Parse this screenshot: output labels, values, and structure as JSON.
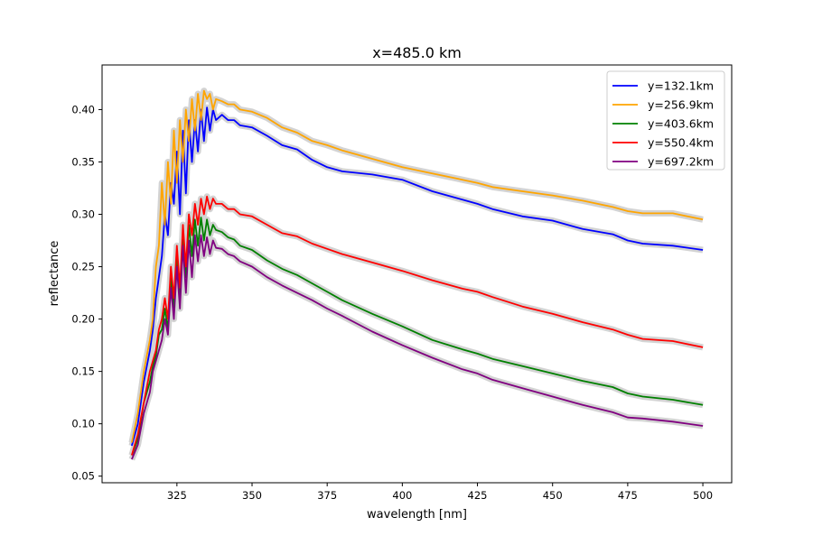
{
  "chart_data": {
    "type": "line",
    "title": "x=485.0 km",
    "xlabel": "wavelength [nm]",
    "ylabel": "reflectance",
    "xlim": [
      300.1,
      509.6
    ],
    "ylim": [
      0.0437,
      0.4426
    ],
    "xticks": [
      325,
      350,
      375,
      400,
      425,
      450,
      475,
      500
    ],
    "xtick_labels": [
      "325",
      "350",
      "375",
      "400",
      "425",
      "450",
      "475",
      "500"
    ],
    "yticks": [
      0.05,
      0.1,
      0.15,
      0.2,
      0.25,
      0.3,
      0.35,
      0.4
    ],
    "ytick_labels": [
      "0.05",
      "0.10",
      "0.15",
      "0.20",
      "0.25",
      "0.30",
      "0.35",
      "0.40"
    ],
    "grid": false,
    "legend_position": "top-right",
    "uncertainty_band_color": "#d3d3d3",
    "x": [
      310,
      312,
      314,
      316,
      317,
      318,
      319,
      320,
      321,
      322,
      323,
      324,
      325,
      326,
      327,
      328,
      329,
      330,
      331,
      332,
      333,
      334,
      335,
      336,
      337,
      338,
      340,
      342,
      344,
      346,
      350,
      355,
      360,
      365,
      370,
      375,
      380,
      390,
      400,
      410,
      420,
      425,
      430,
      440,
      450,
      460,
      470,
      475,
      480,
      490,
      500
    ],
    "series": [
      {
        "name": "y=132.1km",
        "color": "#0000ff",
        "values": [
          0.079,
          0.1,
          0.14,
          0.17,
          0.19,
          0.22,
          0.24,
          0.26,
          0.3,
          0.28,
          0.33,
          0.31,
          0.36,
          0.3,
          0.38,
          0.32,
          0.39,
          0.35,
          0.39,
          0.36,
          0.4,
          0.37,
          0.402,
          0.38,
          0.4,
          0.39,
          0.395,
          0.39,
          0.39,
          0.385,
          0.383,
          0.375,
          0.366,
          0.362,
          0.352,
          0.345,
          0.341,
          0.338,
          0.333,
          0.322,
          0.314,
          0.31,
          0.305,
          0.298,
          0.294,
          0.286,
          0.281,
          0.275,
          0.272,
          0.27,
          0.266
        ]
      },
      {
        "name": "y=256.9km",
        "color": "#ffa500",
        "values": [
          0.082,
          0.11,
          0.15,
          0.18,
          0.2,
          0.25,
          0.27,
          0.33,
          0.29,
          0.35,
          0.31,
          0.38,
          0.33,
          0.39,
          0.35,
          0.4,
          0.37,
          0.41,
          0.38,
          0.415,
          0.39,
          0.418,
          0.41,
          0.415,
          0.4,
          0.41,
          0.408,
          0.405,
          0.405,
          0.4,
          0.398,
          0.392,
          0.383,
          0.378,
          0.37,
          0.366,
          0.361,
          0.353,
          0.345,
          0.339,
          0.333,
          0.33,
          0.326,
          0.322,
          0.318,
          0.313,
          0.307,
          0.303,
          0.301,
          0.301,
          0.295
        ]
      },
      {
        "name": "y=403.6km",
        "color": "#008000",
        "values": [
          0.07,
          0.085,
          0.12,
          0.14,
          0.155,
          0.165,
          0.185,
          0.19,
          0.21,
          0.19,
          0.24,
          0.21,
          0.26,
          0.22,
          0.28,
          0.24,
          0.29,
          0.26,
          0.295,
          0.27,
          0.297,
          0.275,
          0.295,
          0.28,
          0.29,
          0.285,
          0.283,
          0.278,
          0.276,
          0.27,
          0.266,
          0.256,
          0.248,
          0.242,
          0.234,
          0.226,
          0.218,
          0.205,
          0.193,
          0.18,
          0.171,
          0.167,
          0.162,
          0.155,
          0.148,
          0.141,
          0.135,
          0.129,
          0.126,
          0.123,
          0.118
        ]
      },
      {
        "name": "y=550.4km",
        "color": "#ff0000",
        "values": [
          0.07,
          0.09,
          0.12,
          0.15,
          0.16,
          0.17,
          0.19,
          0.2,
          0.22,
          0.2,
          0.25,
          0.22,
          0.27,
          0.23,
          0.29,
          0.25,
          0.3,
          0.28,
          0.31,
          0.29,
          0.315,
          0.3,
          0.317,
          0.305,
          0.315,
          0.31,
          0.31,
          0.305,
          0.305,
          0.3,
          0.298,
          0.29,
          0.282,
          0.279,
          0.272,
          0.267,
          0.262,
          0.254,
          0.246,
          0.237,
          0.229,
          0.226,
          0.221,
          0.212,
          0.205,
          0.197,
          0.19,
          0.185,
          0.181,
          0.179,
          0.173
        ]
      },
      {
        "name": "y=697.2km",
        "color": "#800080",
        "values": [
          0.066,
          0.08,
          0.11,
          0.13,
          0.15,
          0.16,
          0.17,
          0.18,
          0.2,
          0.185,
          0.23,
          0.2,
          0.25,
          0.21,
          0.27,
          0.225,
          0.275,
          0.24,
          0.28,
          0.255,
          0.28,
          0.26,
          0.278,
          0.262,
          0.275,
          0.268,
          0.267,
          0.262,
          0.26,
          0.255,
          0.25,
          0.24,
          0.232,
          0.225,
          0.218,
          0.21,
          0.203,
          0.188,
          0.175,
          0.163,
          0.152,
          0.148,
          0.142,
          0.134,
          0.126,
          0.118,
          0.111,
          0.106,
          0.105,
          0.102,
          0.098
        ]
      }
    ]
  }
}
